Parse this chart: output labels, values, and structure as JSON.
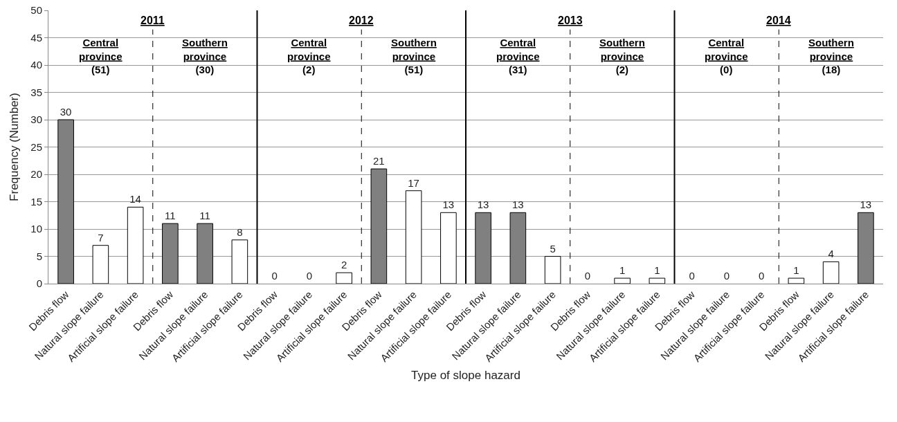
{
  "chart_data": {
    "type": "bar",
    "xlabel": "Type of slope hazard",
    "ylabel": "Frequency (Number)",
    "categories": [
      "Debris flow",
      "Natural slope failure",
      "Artificial slope failure",
      "Debris flow",
      "Natural slope failure",
      "Artificial slope failure",
      "Debris flow",
      "Natural slope failure",
      "Artificial slope failure",
      "Debris flow",
      "Natural slope failure",
      "Artificial slope failure",
      "Debris flow",
      "Natural slope failure",
      "Artificial slope failure",
      "Debris flow",
      "Natural slope failure",
      "Artificial slope failure",
      "Debris flow",
      "Natural slope failure",
      "Artificial slope failure",
      "Debris flow",
      "Natural slope failure",
      "Artificial slope failure"
    ],
    "values": [
      30,
      7,
      14,
      11,
      11,
      8,
      0,
      0,
      2,
      21,
      17,
      13,
      13,
      13,
      5,
      0,
      1,
      1,
      0,
      0,
      0,
      1,
      4,
      13
    ],
    "colors": [
      "#808080",
      "#ffffff",
      "#ffffff",
      "#808080",
      "#808080",
      "#ffffff",
      "#ffffff",
      "#ffffff",
      "#ffffff",
      "#808080",
      "#ffffff",
      "#ffffff",
      "#808080",
      "#808080",
      "#ffffff",
      "#ffffff",
      "#ffffff",
      "#ffffff",
      "#ffffff",
      "#ffffff",
      "#ffffff",
      "#ffffff",
      "#ffffff",
      "#808080"
    ],
    "data_labels": true,
    "ylim": [
      0,
      50
    ],
    "yticks": [
      0,
      5,
      10,
      15,
      20,
      25,
      30,
      35,
      40,
      45,
      50
    ],
    "grid": "y",
    "annotations": [
      "2011",
      "Central province (51)",
      "Southern province (30)",
      "2012",
      "Central province (2)",
      "Southern province (51)",
      "2013",
      "Central province (31)",
      "Southern province (2)",
      "2014",
      "Central province (0)",
      "Southern province (18)"
    ]
  }
}
